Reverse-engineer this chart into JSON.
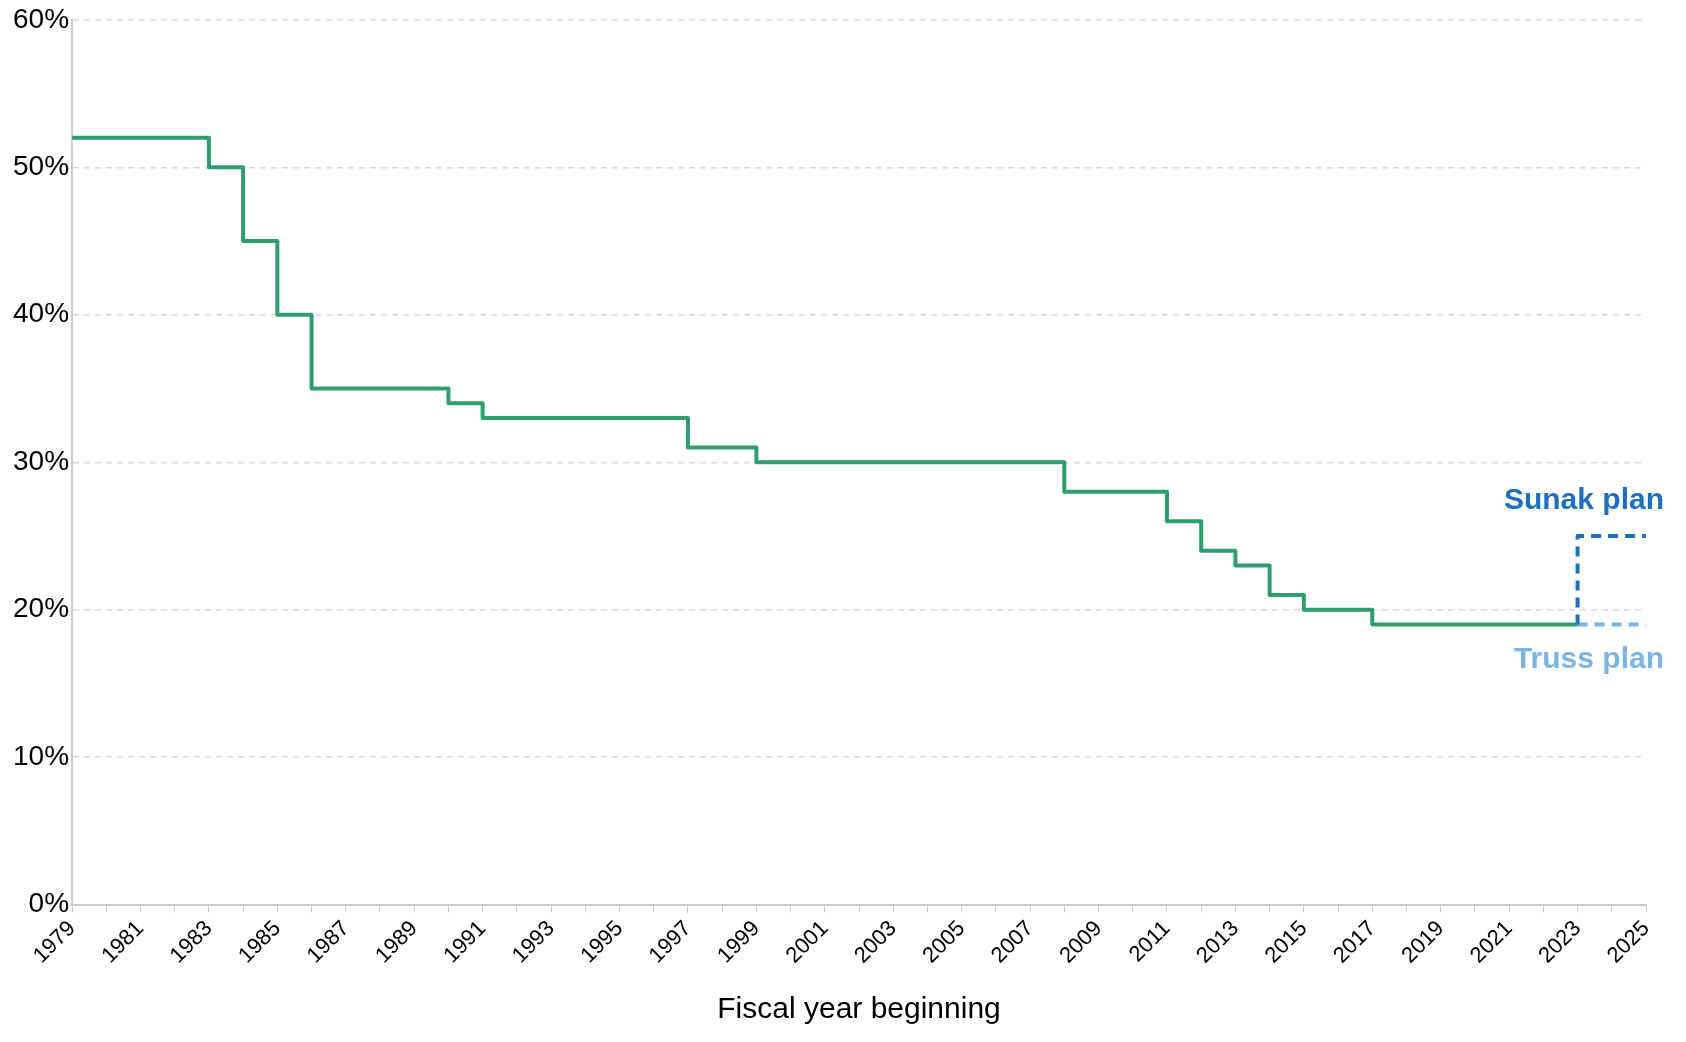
{
  "chart_data": {
    "type": "step",
    "xlabel": "Fiscal year beginning",
    "xlim": [
      1979,
      2025
    ],
    "xticks": [
      1979,
      {
        "value": 1980,
        "label": null
      },
      1981,
      {
        "value": 1982,
        "label": null
      },
      1983,
      {
        "value": 1984,
        "label": null
      },
      1985,
      {
        "value": 1986,
        "label": null
      },
      1987,
      {
        "value": 1988,
        "label": null
      },
      1989,
      {
        "value": 1990,
        "label": null
      },
      1991,
      {
        "value": 1992,
        "label": null
      },
      1993,
      {
        "value": 1994,
        "label": null
      },
      1995,
      {
        "value": 1996,
        "label": null
      },
      1997,
      {
        "value": 1998,
        "label": null
      },
      1999,
      {
        "value": 2000,
        "label": null
      },
      2001,
      {
        "value": 2002,
        "label": null
      },
      2003,
      {
        "value": 2004,
        "label": null
      },
      2005,
      {
        "value": 2006,
        "label": null
      },
      2007,
      {
        "value": 2008,
        "label": null
      },
      2009,
      {
        "value": 2010,
        "label": null
      },
      2011,
      {
        "value": 2012,
        "label": null
      },
      2013,
      {
        "value": 2014,
        "label": null
      },
      2015,
      {
        "value": 2016,
        "label": null
      },
      2017,
      {
        "value": 2018,
        "label": null
      },
      2019,
      {
        "value": 2020,
        "label": null
      },
      2021,
      {
        "value": 2022,
        "label": null
      },
      2023,
      {
        "value": 2024,
        "label": null
      },
      2025
    ],
    "ylim": [
      0,
      60
    ],
    "yticks": [
      {
        "value": 0,
        "label": "0%"
      },
      {
        "value": 10,
        "label": "10%"
      },
      {
        "value": 20,
        "label": "20%"
      },
      {
        "value": 30,
        "label": "30%"
      },
      {
        "value": 40,
        "label": "40%"
      },
      {
        "value": 50,
        "label": "50%"
      },
      {
        "value": 60,
        "label": "60%"
      }
    ],
    "grid": "y",
    "legend": false,
    "series": [
      {
        "color": "#2e9e6e",
        "line_style": "solid",
        "x": [
          1979,
          1983,
          1984,
          1985,
          1986,
          1990,
          1991,
          1997,
          1999,
          2008,
          2011,
          2012,
          2013,
          2014,
          2015,
          2017,
          2023
        ],
        "values": [
          52,
          50,
          45,
          40,
          35,
          34,
          33,
          31,
          30,
          28,
          26,
          24,
          23,
          21,
          20,
          19,
          19
        ]
      },
      {
        "type": "line",
        "name": "Sunak plan",
        "color": "#1f6fc0",
        "line_style": "dashed",
        "x": [
          2023,
          2023,
          2025
        ],
        "values": [
          19,
          25,
          25
        ]
      },
      {
        "type": "line",
        "name": "Truss plan",
        "color": "#7ab3e6",
        "line_style": "dashed",
        "x": [
          2023,
          2025
        ],
        "values": [
          19,
          19
        ]
      }
    ]
  }
}
